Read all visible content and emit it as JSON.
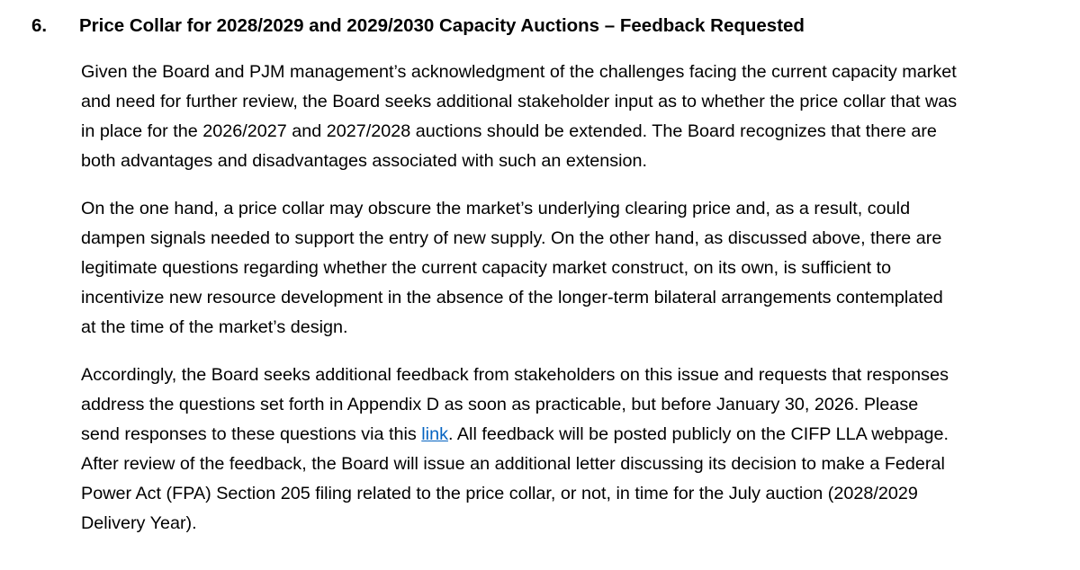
{
  "document": {
    "heading": {
      "number": "6.",
      "title": "Price Collar for 2028/2029 and 2029/2030 Capacity Auctions – Feedback Requested"
    },
    "link_color": "#0563C1",
    "text_color": "#000000",
    "paragraphs": [
      {
        "lines": [
          "Given the Board and PJM management’s acknowledgment of the challenges facing the current capacity market",
          "and need for further review, the Board seeks additional stakeholder input as to whether the price collar that was",
          "in place for the 2026/2027 and 2027/2028 auctions should be extended. The Board recognizes that there are",
          "both advantages and disadvantages associated with such an extension."
        ]
      },
      {
        "lines": [
          "On the one hand, a price collar may obscure the market’s underlying clearing price and, as a result, could",
          "dampen signals needed to support the entry of new supply. On the other hand, as discussed above, there are",
          "legitimate questions regarding whether the current capacity market construct, on its own, is sufficient to",
          "incentivize new resource development in the absence of the longer-term bilateral arrangements contemplated",
          "at the time of the market’s design."
        ]
      },
      {
        "lines": [
          "Accordingly, the Board seeks additional feedback from stakeholders on this issue and requests that responses",
          "address the questions set forth in Appendix D as soon as practicable, but before January 30, 2026. Please",
          {
            "segments": [
              {
                "text": "send responses to these questions via this "
              },
              {
                "text": "link",
                "type": "link"
              },
              {
                "text": ". All feedback will be posted publicly on the CIFP LLA webpage."
              }
            ]
          },
          "After review of the feedback, the Board will issue an additional letter discussing its decision to make a Federal",
          "Power Act (FPA) Section 205 filing related to the price collar, or not, in time for the July auction (2028/2029",
          "Delivery Year)."
        ]
      }
    ]
  }
}
